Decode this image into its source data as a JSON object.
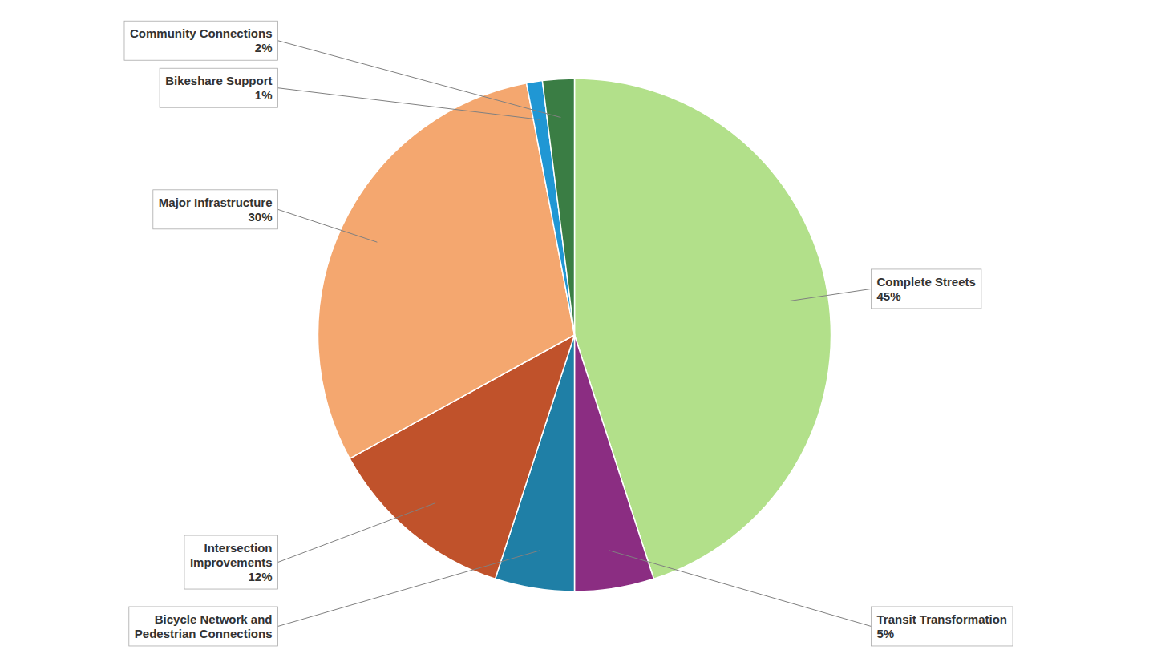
{
  "chart_data": {
    "type": "pie",
    "categories": [
      "Complete Streets",
      "Transit Transformation",
      "Bicycle Network and\nPedestrian Connections",
      "Intersection\nImprovements",
      "Major Infrastructure",
      "Bikeshare Support",
      "Community Connections"
    ],
    "values": [
      45,
      5,
      5,
      12,
      30,
      1,
      2
    ],
    "value_labels": [
      "45%",
      "5%",
      null,
      "12%",
      "30%",
      "1%",
      "2%"
    ],
    "colors": [
      "#b2e08a",
      "#8b2d82",
      "#1f7fa6",
      "#c0522b",
      "#f4a76f",
      "#2097d4",
      "#3a7d44"
    ],
    "data_labels": true
  }
}
